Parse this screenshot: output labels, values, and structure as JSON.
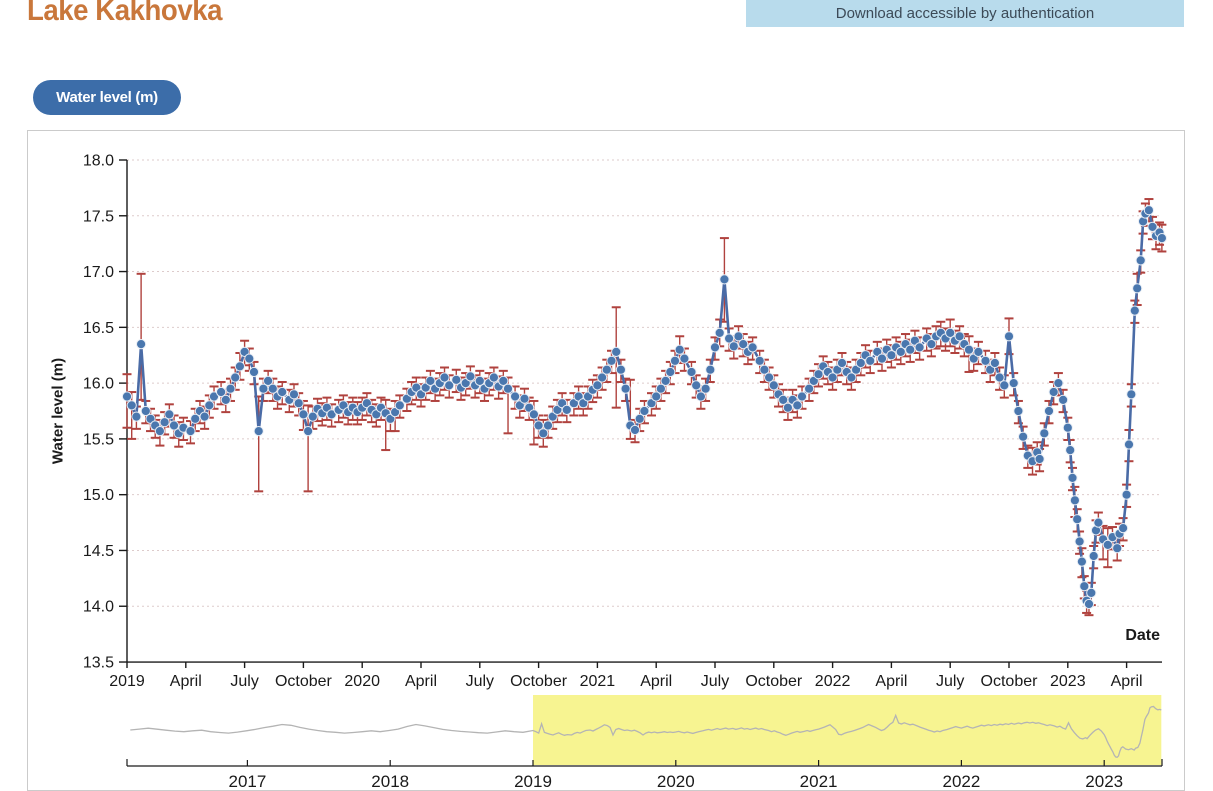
{
  "header": {
    "title": "Lake Kakhovka",
    "banner": "Download accessible by authentication"
  },
  "controls": {
    "series_toggle": "Water level (m)"
  },
  "chart_data": {
    "type": "scatter",
    "title": "Lake Kakhovka water level time series with error bars and range-selector overview",
    "xlabel": "Date",
    "ylabel": "Water level (m)",
    "ylim": [
      13.5,
      18.0
    ],
    "grid": "horizontal dotted",
    "legend_position": "none",
    "y_ticks": [
      "18.0",
      "17.5",
      "17.0",
      "16.5",
      "16.0",
      "15.5",
      "15.0",
      "14.5",
      "14.0",
      "13.5"
    ],
    "x_domain": [
      2019.0,
      2023.4
    ],
    "x_ticks": [
      {
        "t": 2019.0,
        "label": "2019"
      },
      {
        "t": 2019.25,
        "label": "April"
      },
      {
        "t": 2019.5,
        "label": "July"
      },
      {
        "t": 2019.75,
        "label": "October"
      },
      {
        "t": 2020.0,
        "label": "2020"
      },
      {
        "t": 2020.25,
        "label": "April"
      },
      {
        "t": 2020.5,
        "label": "July"
      },
      {
        "t": 2020.75,
        "label": "October"
      },
      {
        "t": 2021.0,
        "label": "2021"
      },
      {
        "t": 2021.25,
        "label": "April"
      },
      {
        "t": 2021.5,
        "label": "July"
      },
      {
        "t": 2021.75,
        "label": "October"
      },
      {
        "t": 2022.0,
        "label": "2022"
      },
      {
        "t": 2022.25,
        "label": "April"
      },
      {
        "t": 2022.5,
        "label": "July"
      },
      {
        "t": 2022.75,
        "label": "October"
      },
      {
        "t": 2023.0,
        "label": "2023"
      },
      {
        "t": 2023.25,
        "label": "April"
      }
    ],
    "default_err": {
      "down": 0.11,
      "up": 0.09
    },
    "points": [
      [
        2019.0,
        15.88,
        15.6,
        16.08
      ],
      [
        2019.02,
        15.8,
        15.5,
        15.92
      ],
      [
        2019.04,
        15.7
      ],
      [
        2019.06,
        16.35,
        15.85,
        16.98
      ],
      [
        2019.08,
        15.75
      ],
      [
        2019.1,
        15.68
      ],
      [
        2019.12,
        15.62
      ],
      [
        2019.14,
        15.57,
        15.44,
        15.67
      ],
      [
        2019.16,
        15.65
      ],
      [
        2019.18,
        15.72
      ],
      [
        2019.2,
        15.62
      ],
      [
        2019.22,
        15.55,
        15.43,
        15.65
      ],
      [
        2019.24,
        15.6
      ],
      [
        2019.27,
        15.57
      ],
      [
        2019.29,
        15.68
      ],
      [
        2019.31,
        15.75
      ],
      [
        2019.33,
        15.7
      ],
      [
        2019.35,
        15.8
      ],
      [
        2019.37,
        15.88
      ],
      [
        2019.4,
        15.92
      ],
      [
        2019.42,
        15.85
      ],
      [
        2019.44,
        15.95
      ],
      [
        2019.46,
        16.05
      ],
      [
        2019.48,
        16.15,
        16.03,
        16.27
      ],
      [
        2019.5,
        16.28,
        16.16,
        16.38
      ],
      [
        2019.52,
        16.22
      ],
      [
        2019.54,
        16.1
      ],
      [
        2019.56,
        15.57,
        15.03,
        15.88
      ],
      [
        2019.58,
        15.95
      ],
      [
        2019.6,
        16.02
      ],
      [
        2019.62,
        15.95
      ],
      [
        2019.64,
        15.88
      ],
      [
        2019.66,
        15.92
      ],
      [
        2019.69,
        15.85
      ],
      [
        2019.71,
        15.9
      ],
      [
        2019.73,
        15.82
      ],
      [
        2019.75,
        15.72,
        15.58,
        15.84
      ],
      [
        2019.77,
        15.57,
        15.03,
        15.8
      ],
      [
        2019.79,
        15.7
      ],
      [
        2019.81,
        15.77
      ],
      [
        2019.83,
        15.73
      ],
      [
        2019.85,
        15.78
      ],
      [
        2019.87,
        15.72
      ],
      [
        2019.9,
        15.76
      ],
      [
        2019.92,
        15.8
      ],
      [
        2019.94,
        15.74
      ],
      [
        2019.96,
        15.78
      ],
      [
        2019.98,
        15.74
      ],
      [
        2020.0,
        15.78
      ],
      [
        2020.02,
        15.82
      ],
      [
        2020.04,
        15.76
      ],
      [
        2020.06,
        15.72
      ],
      [
        2020.08,
        15.78
      ],
      [
        2020.1,
        15.73,
        15.4,
        15.85
      ],
      [
        2020.12,
        15.68
      ],
      [
        2020.14,
        15.74,
        15.57,
        15.84
      ],
      [
        2020.16,
        15.8
      ],
      [
        2020.19,
        15.86
      ],
      [
        2020.21,
        15.92
      ],
      [
        2020.23,
        15.96
      ],
      [
        2020.25,
        15.9
      ],
      [
        2020.27,
        15.96
      ],
      [
        2020.29,
        16.02
      ],
      [
        2020.31,
        15.95
      ],
      [
        2020.33,
        16.0
      ],
      [
        2020.35,
        16.05
      ],
      [
        2020.37,
        15.98
      ],
      [
        2020.4,
        16.03
      ],
      [
        2020.42,
        15.96
      ],
      [
        2020.44,
        16.0
      ],
      [
        2020.46,
        16.06
      ],
      [
        2020.48,
        15.98
      ],
      [
        2020.5,
        16.02
      ],
      [
        2020.52,
        15.95
      ],
      [
        2020.54,
        16.0
      ],
      [
        2020.56,
        16.05
      ],
      [
        2020.58,
        15.97
      ],
      [
        2020.6,
        16.02
      ],
      [
        2020.62,
        15.95,
        15.55,
        16.05
      ],
      [
        2020.65,
        15.88
      ],
      [
        2020.67,
        15.8
      ],
      [
        2020.69,
        15.86
      ],
      [
        2020.71,
        15.78
      ],
      [
        2020.73,
        15.72,
        15.45,
        15.84
      ],
      [
        2020.75,
        15.62
      ],
      [
        2020.77,
        15.55,
        15.43,
        15.67
      ],
      [
        2020.79,
        15.62
      ],
      [
        2020.81,
        15.7
      ],
      [
        2020.83,
        15.76
      ],
      [
        2020.85,
        15.82
      ],
      [
        2020.87,
        15.76
      ],
      [
        2020.9,
        15.82
      ],
      [
        2020.92,
        15.88
      ],
      [
        2020.94,
        15.82
      ],
      [
        2020.96,
        15.88
      ],
      [
        2020.98,
        15.94
      ],
      [
        2021.0,
        15.98
      ],
      [
        2021.02,
        16.05
      ],
      [
        2021.04,
        16.12
      ],
      [
        2021.06,
        16.2
      ],
      [
        2021.08,
        16.28,
        15.78,
        16.68
      ],
      [
        2021.1,
        16.12
      ],
      [
        2021.12,
        15.95
      ],
      [
        2021.14,
        15.62,
        15.5,
        16.03
      ],
      [
        2021.16,
        15.58
      ],
      [
        2021.18,
        15.68
      ],
      [
        2021.2,
        15.75
      ],
      [
        2021.23,
        15.82
      ],
      [
        2021.25,
        15.88
      ],
      [
        2021.27,
        15.95
      ],
      [
        2021.29,
        16.02
      ],
      [
        2021.31,
        16.1
      ],
      [
        2021.33,
        16.2
      ],
      [
        2021.35,
        16.3,
        16.18,
        16.42
      ],
      [
        2021.37,
        16.22
      ],
      [
        2021.4,
        16.1
      ],
      [
        2021.42,
        15.98
      ],
      [
        2021.44,
        15.88
      ],
      [
        2021.46,
        15.95
      ],
      [
        2021.48,
        16.12
      ],
      [
        2021.5,
        16.32
      ],
      [
        2021.52,
        16.45,
        16.33,
        16.57
      ],
      [
        2021.54,
        16.93,
        16.55,
        17.3
      ],
      [
        2021.56,
        16.4
      ],
      [
        2021.58,
        16.33
      ],
      [
        2021.6,
        16.42
      ],
      [
        2021.62,
        16.35
      ],
      [
        2021.64,
        16.28
      ],
      [
        2021.66,
        16.32
      ],
      [
        2021.69,
        16.2
      ],
      [
        2021.71,
        16.12
      ],
      [
        2021.73,
        16.05
      ],
      [
        2021.75,
        15.98
      ],
      [
        2021.77,
        15.9
      ],
      [
        2021.79,
        15.85
      ],
      [
        2021.81,
        15.78
      ],
      [
        2021.83,
        15.85
      ],
      [
        2021.85,
        15.8
      ],
      [
        2021.87,
        15.88
      ],
      [
        2021.9,
        15.95
      ],
      [
        2021.92,
        16.02
      ],
      [
        2021.94,
        16.08
      ],
      [
        2021.96,
        16.15
      ],
      [
        2021.98,
        16.1
      ],
      [
        2022.0,
        16.05
      ],
      [
        2022.02,
        16.12
      ],
      [
        2022.04,
        16.18
      ],
      [
        2022.06,
        16.1
      ],
      [
        2022.08,
        16.05
      ],
      [
        2022.1,
        16.12
      ],
      [
        2022.12,
        16.18
      ],
      [
        2022.14,
        16.25
      ],
      [
        2022.16,
        16.2
      ],
      [
        2022.19,
        16.28
      ],
      [
        2022.21,
        16.22
      ],
      [
        2022.23,
        16.3
      ],
      [
        2022.25,
        16.25
      ],
      [
        2022.27,
        16.32
      ],
      [
        2022.29,
        16.28
      ],
      [
        2022.31,
        16.35
      ],
      [
        2022.33,
        16.3
      ],
      [
        2022.35,
        16.38
      ],
      [
        2022.37,
        16.32
      ],
      [
        2022.4,
        16.4
      ],
      [
        2022.42,
        16.35
      ],
      [
        2022.44,
        16.42
      ],
      [
        2022.46,
        16.45,
        16.33,
        16.55
      ],
      [
        2022.48,
        16.4
      ],
      [
        2022.5,
        16.45,
        16.33,
        16.57
      ],
      [
        2022.52,
        16.38
      ],
      [
        2022.54,
        16.42
      ],
      [
        2022.56,
        16.35
      ],
      [
        2022.58,
        16.3,
        16.1,
        16.42
      ],
      [
        2022.6,
        16.22
      ],
      [
        2022.62,
        16.28
      ],
      [
        2022.65,
        16.2
      ],
      [
        2022.67,
        16.12
      ],
      [
        2022.69,
        16.18
      ],
      [
        2022.71,
        16.05
      ],
      [
        2022.73,
        15.98
      ],
      [
        2022.75,
        16.42,
        16.26,
        16.58
      ],
      [
        2022.77,
        16.0
      ],
      [
        2022.79,
        15.75
      ],
      [
        2022.81,
        15.52
      ],
      [
        2022.83,
        15.35
      ],
      [
        2022.85,
        15.3,
        15.18,
        15.42
      ],
      [
        2022.87,
        15.38
      ],
      [
        2022.88,
        15.32
      ],
      [
        2022.9,
        15.55
      ],
      [
        2022.92,
        15.75
      ],
      [
        2022.94,
        15.92
      ],
      [
        2022.96,
        16.0
      ],
      [
        2022.98,
        15.85
      ],
      [
        2023.0,
        15.6
      ],
      [
        2023.01,
        15.4
      ],
      [
        2023.02,
        15.15
      ],
      [
        2023.03,
        14.95,
        14.8,
        15.07
      ],
      [
        2023.04,
        14.78
      ],
      [
        2023.05,
        14.58
      ],
      [
        2023.06,
        14.4,
        14.26,
        14.52
      ],
      [
        2023.07,
        14.18
      ],
      [
        2023.08,
        14.05
      ],
      [
        2023.09,
        14.02,
        13.92,
        14.12
      ],
      [
        2023.1,
        14.12
      ],
      [
        2023.11,
        14.45
      ],
      [
        2023.12,
        14.68
      ],
      [
        2023.13,
        14.75
      ],
      [
        2023.15,
        14.6,
        14.42,
        14.72
      ],
      [
        2023.17,
        14.55,
        14.35,
        14.7
      ],
      [
        2023.19,
        14.62
      ],
      [
        2023.21,
        14.52
      ],
      [
        2023.22,
        14.65
      ],
      [
        2023.235,
        14.7
      ],
      [
        2023.25,
        15.0
      ],
      [
        2023.26,
        15.45,
        15.3,
        15.58
      ],
      [
        2023.27,
        15.9
      ],
      [
        2023.285,
        16.65
      ],
      [
        2023.295,
        16.85,
        16.7,
        16.98
      ],
      [
        2023.31,
        17.1
      ],
      [
        2023.32,
        17.45
      ],
      [
        2023.33,
        17.52
      ],
      [
        2023.345,
        17.55,
        17.45,
        17.65
      ],
      [
        2023.36,
        17.4
      ],
      [
        2023.375,
        17.32,
        17.2,
        17.42
      ],
      [
        2023.39,
        17.35
      ],
      [
        2023.4,
        17.3,
        17.18,
        17.42
      ]
    ],
    "mini": {
      "x_domain": [
        2016.17,
        2023.4
      ],
      "year_ticks": [
        {
          "t": 2017,
          "label": "2017"
        },
        {
          "t": 2018,
          "label": "2018"
        },
        {
          "t": 2019,
          "label": "2019"
        },
        {
          "t": 2020,
          "label": "2020"
        },
        {
          "t": 2021,
          "label": "2021"
        },
        {
          "t": 2022,
          "label": "2022"
        },
        {
          "t": 2023,
          "label": "2023"
        }
      ],
      "brush_start": 2019.0,
      "brush_end": 2023.4,
      "history": {
        "t_start": 2016.18,
        "t_step": 0.0625,
        "values": [
          15.92,
          15.98,
          16.04,
          15.97,
          15.9,
          15.84,
          15.8,
          15.86,
          15.9,
          15.8,
          15.74,
          15.7,
          15.77,
          15.86,
          15.96,
          16.08,
          16.18,
          16.3,
          16.24,
          16.1,
          15.98,
          15.88,
          15.8,
          15.76,
          15.7,
          15.74,
          15.8,
          15.86,
          15.8,
          15.88,
          15.98,
          16.16,
          16.3,
          16.2,
          16.08,
          15.96,
          15.88,
          15.82,
          15.78,
          15.73,
          15.7,
          15.78,
          15.86,
          15.8,
          15.76
        ]
      }
    },
    "colors": {
      "point": "#4a77ae",
      "point_ring": "#e9eef5",
      "error_bar": "#b0423e",
      "trend_line": "#4a6ba6",
      "grid": "#ddcbcb",
      "axis": "#1a1a1a",
      "mini_line": "#b4b4b4",
      "brush_fill": "#f6f282",
      "title": "#c9773b",
      "banner_bg": "#b8dbec",
      "pill_bg": "#3c6da9"
    }
  }
}
